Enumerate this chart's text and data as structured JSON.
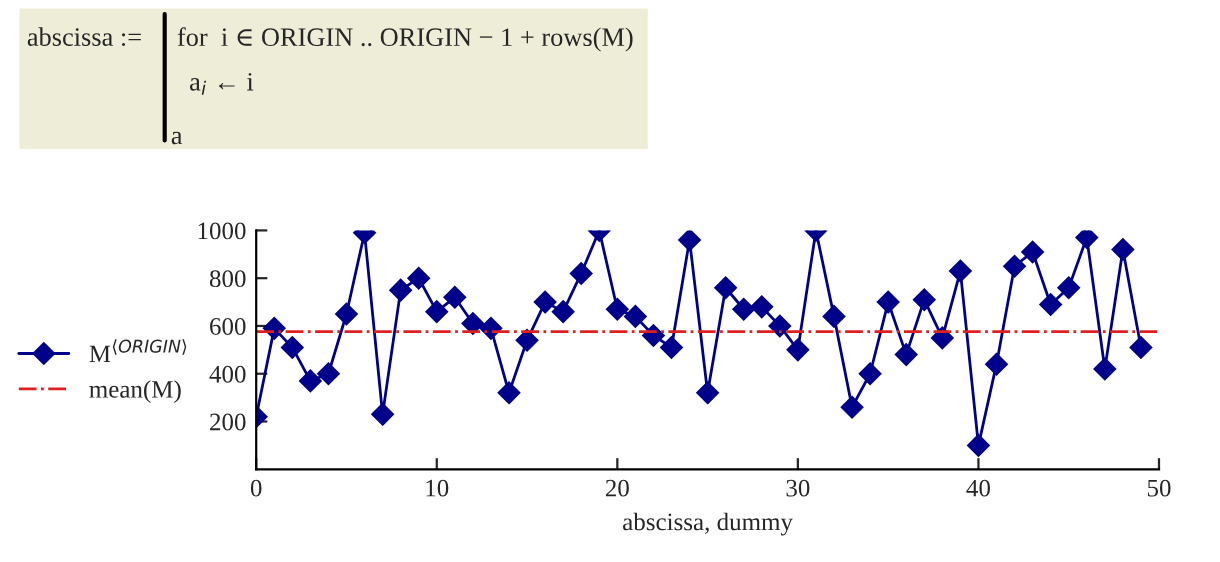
{
  "chart_data": {
    "type": "line",
    "xlabel": "abscissa, dummy",
    "x": [
      0,
      1,
      2,
      3,
      4,
      5,
      6,
      7,
      8,
      9,
      10,
      11,
      12,
      13,
      14,
      15,
      16,
      17,
      18,
      19,
      20,
      21,
      22,
      23,
      24,
      25,
      26,
      27,
      28,
      29,
      30,
      31,
      32,
      33,
      34,
      35,
      36,
      37,
      38,
      39,
      40,
      41,
      42,
      43,
      44,
      45,
      46,
      47,
      48,
      49
    ],
    "series": [
      {
        "name": "M$^{⟨ORIGIN⟩}$",
        "color": "#00008b",
        "values": [
          220,
          590,
          510,
          370,
          400,
          650,
          990,
          230,
          750,
          800,
          660,
          720,
          610,
          590,
          320,
          540,
          700,
          660,
          820,
          1000,
          670,
          640,
          560,
          510,
          960,
          320,
          760,
          670,
          680,
          600,
          500,
          1000,
          640,
          260,
          400,
          700,
          480,
          710,
          550,
          830,
          100,
          440,
          850,
          910,
          690,
          760,
          970,
          420,
          920,
          510
        ]
      }
    ],
    "ref_lines": [
      {
        "axis": "y",
        "value": 576,
        "label": "mean(M)",
        "color": "#e02020",
        "line_style": "dashdot"
      }
    ],
    "xlim": [
      0,
      50
    ],
    "xticks": [
      0,
      10,
      20,
      30,
      40,
      50
    ],
    "ylim": [
      0,
      1000
    ],
    "yticks": [
      200,
      400,
      600,
      800,
      1000
    ],
    "marker": "diamond",
    "line_style": "solid",
    "grid": false,
    "legend": "left",
    "annotations": [
      "abscissa :=",
      "for  i ∈ ORIGIN .. ORIGIN − 1 + rows(M)",
      "a$_{i}$ ← i",
      "a"
    ]
  }
}
